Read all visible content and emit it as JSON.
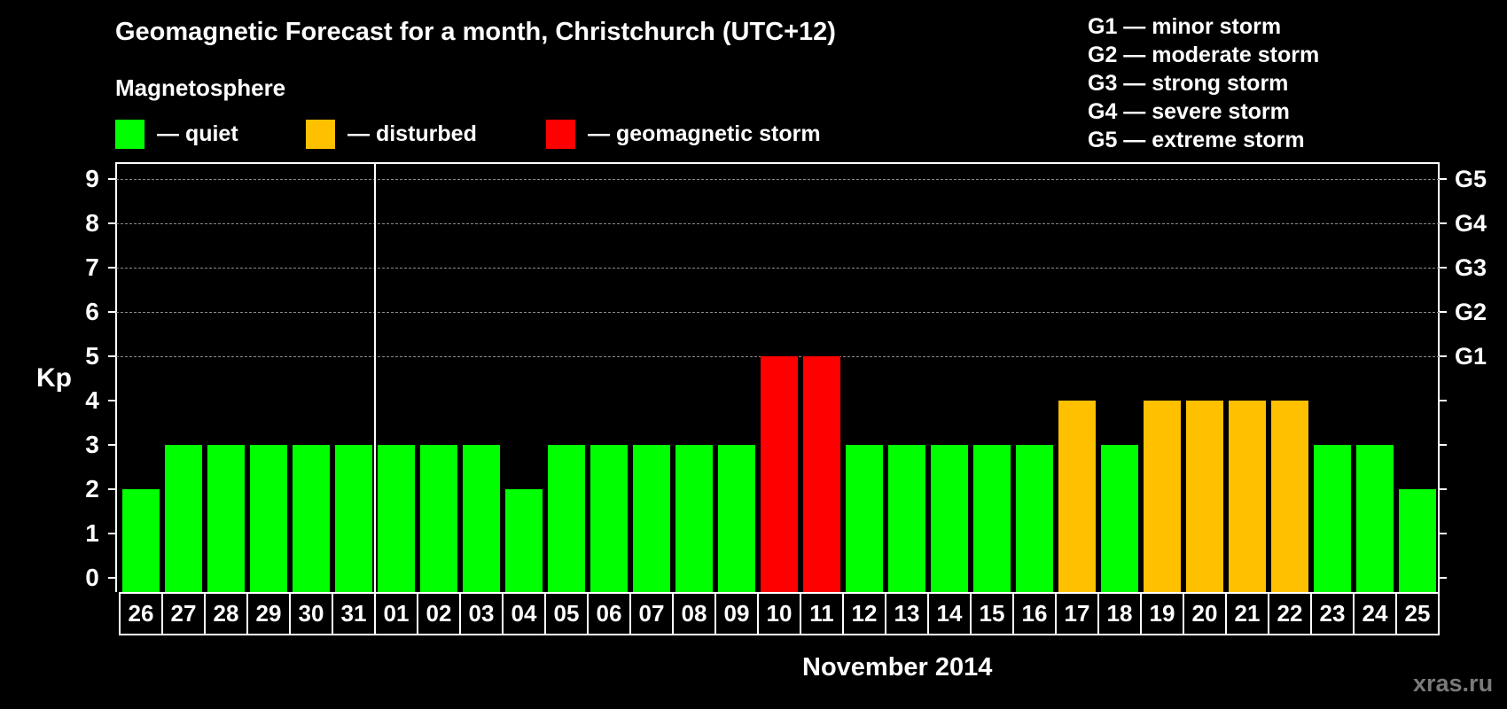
{
  "header": {
    "title": "Geomagnetic Forecast for a month, Christchurch (UTC+12)",
    "subtitle": "Magnetosphere"
  },
  "legend": [
    {
      "label": "— quiet",
      "color": "#00FF00"
    },
    {
      "label": "— disturbed",
      "color": "#FFC000"
    },
    {
      "label": "— geomagnetic storm",
      "color": "#FF0000"
    }
  ],
  "g_scale_legend": [
    "G1 — minor storm",
    "G2 — moderate storm",
    "G3 — strong storm",
    "G4 — severe storm",
    "G5 — extreme storm"
  ],
  "axis": {
    "ylabel": "Kp",
    "xlabel": "November 2014",
    "yticks": [
      "0",
      "1",
      "2",
      "3",
      "4",
      "5",
      "6",
      "7",
      "8",
      "9"
    ],
    "right_ticks": {
      "5": "G1",
      "6": "G2",
      "7": "G3",
      "8": "G4",
      "9": "G5"
    }
  },
  "watermark": "xras.ru",
  "chart_data": {
    "type": "bar",
    "title": "Geomagnetic Forecast for a month, Christchurch (UTC+12)",
    "subtitle": "Magnetosphere",
    "xlabel": "November 2014",
    "ylabel": "Kp",
    "ylim": [
      0,
      9
    ],
    "grid": "dashed horizontal lines at Kp 5–9",
    "legend_position": "top",
    "categories": [
      "26",
      "27",
      "28",
      "29",
      "30",
      "31",
      "01",
      "02",
      "03",
      "04",
      "05",
      "06",
      "07",
      "08",
      "09",
      "10",
      "11",
      "12",
      "13",
      "14",
      "15",
      "16",
      "17",
      "18",
      "19",
      "20",
      "21",
      "22",
      "23",
      "24",
      "25"
    ],
    "values": [
      2,
      3,
      3,
      3,
      3,
      3,
      3,
      3,
      3,
      2,
      3,
      3,
      3,
      3,
      3,
      5,
      5,
      3,
      3,
      3,
      3,
      3,
      4,
      3,
      4,
      4,
      4,
      4,
      3,
      3,
      2
    ],
    "status": [
      "quiet",
      "quiet",
      "quiet",
      "quiet",
      "quiet",
      "quiet",
      "quiet",
      "quiet",
      "quiet",
      "quiet",
      "quiet",
      "quiet",
      "quiet",
      "quiet",
      "quiet",
      "storm",
      "storm",
      "quiet",
      "quiet",
      "quiet",
      "quiet",
      "quiet",
      "disturbed",
      "quiet",
      "disturbed",
      "disturbed",
      "disturbed",
      "disturbed",
      "quiet",
      "quiet",
      "quiet"
    ],
    "status_colors": {
      "quiet": "#00FF00",
      "disturbed": "#FFC000",
      "storm": "#FF0000"
    },
    "right_axis_labels": {
      "5": "G1",
      "6": "G2",
      "7": "G3",
      "8": "G4",
      "9": "G5"
    },
    "month_boundary_after": "31"
  }
}
